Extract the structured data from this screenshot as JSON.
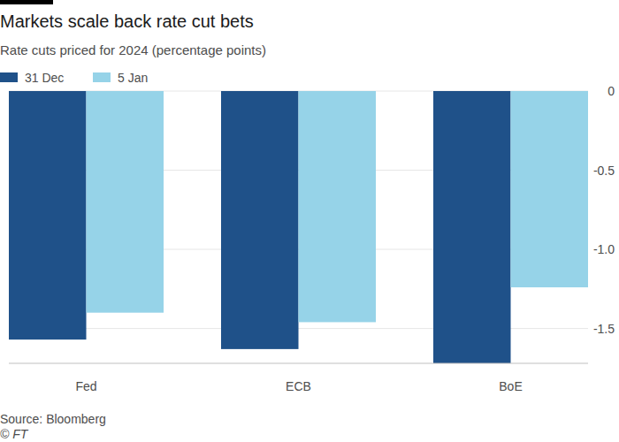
{
  "chart_data": {
    "type": "bar",
    "title": "Markets scale back rate cut bets",
    "subtitle": "Rate cuts priced for 2024 (percentage points)",
    "categories": [
      "Fed",
      "ECB",
      "BoE"
    ],
    "series": [
      {
        "name": "31 Dec",
        "color": "#1f5189",
        "values": [
          -1.57,
          -1.63,
          -1.72
        ]
      },
      {
        "name": "5 Jan",
        "color": "#96d3e8",
        "values": [
          -1.4,
          -1.46,
          -1.24
        ]
      }
    ],
    "ylim": [
      -1.72,
      0
    ],
    "yticks": [
      0,
      {
        "value": -0.5,
        "label": "-0.5"
      },
      {
        "value": -1,
        "label": "-1.0"
      },
      {
        "value": -1.5,
        "label": "-1.5"
      }
    ],
    "grid": true,
    "legend": "top-left",
    "source": "Source: Bloomberg",
    "credit": "© FT"
  }
}
